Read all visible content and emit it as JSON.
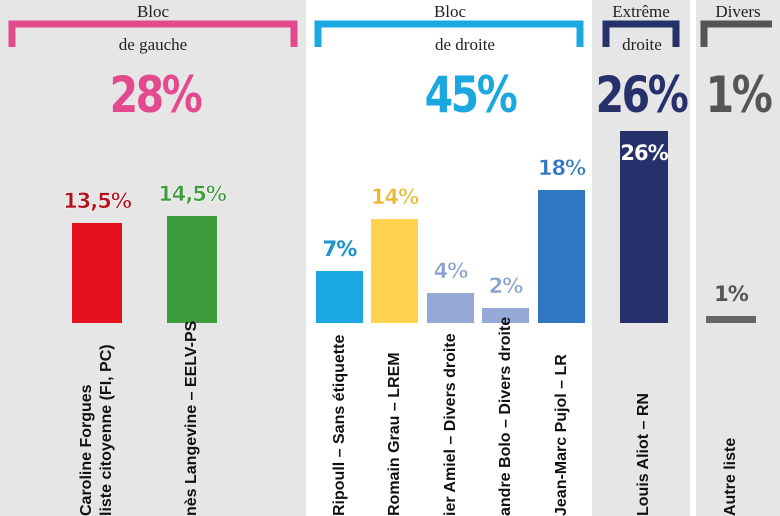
{
  "colors": {
    "gauche": "#e34a8e",
    "droite": "#1ba8e0",
    "extreme": "#26306b",
    "divers": "#555555",
    "panel_bg": "#e6e6e6"
  },
  "blocs": {
    "gauche": {
      "label1": "Bloc",
      "label2": "de gauche",
      "total": "28%"
    },
    "droite": {
      "label1": "Bloc",
      "label2": "de droite",
      "total": "45%"
    },
    "extreme": {
      "label1": "Extrême",
      "label2": "droite",
      "total": "26%"
    },
    "divers": {
      "label1": "Divers",
      "total": "1%"
    }
  },
  "chart_data": {
    "type": "bar",
    "title": "",
    "ylim": [
      0,
      27
    ],
    "categories": [
      "Caroline Forgues liste citoyenne (FI, PC)",
      "Agnès Langevine – EELV-PS",
      "Ripoull – Sans étiquette",
      "Romain Grau – LREM",
      "ier Amiel – Divers droite",
      "andre Bolo – Divers droite",
      "Jean-Marc Pujol – LR",
      "Louis Aliot – RN",
      "Autre liste"
    ],
    "values": [
      13.5,
      14.5,
      7,
      14,
      4,
      2,
      18,
      26,
      1
    ],
    "value_labels": [
      "13,5%",
      "14,5%",
      "7%",
      "14%",
      "4%",
      "2%",
      "18%",
      "26%",
      "1%"
    ],
    "bar_colors": [
      "#e3101e",
      "#3d9c3c",
      "#1ba8e0",
      "#ffd24d",
      "#94a9d6",
      "#94a9d6",
      "#2f77c1",
      "#26306b",
      "#666666"
    ],
    "label_colors": [
      "#b3131c",
      "#3d9c3c",
      "#1c93cc",
      "#e8b830",
      "#8aa0cf",
      "#8aa0cf",
      "#2f77c1",
      "#ffffff",
      "#555555"
    ],
    "candidate_lines": [
      [
        "Caroline Forgues",
        "liste citoyenne (FI, PC)"
      ],
      [
        "nès Langevine – EELV-PS"
      ],
      [
        "Ripoull – Sans étiquette"
      ],
      [
        "Romain Grau – LREM"
      ],
      [
        "ier Amiel – Divers droite"
      ],
      [
        "andre Bolo – Divers droite"
      ],
      [
        "Jean-Marc Pujol – LR"
      ],
      [
        "Louis Aliot – RN"
      ],
      [
        "Autre liste"
      ]
    ]
  }
}
